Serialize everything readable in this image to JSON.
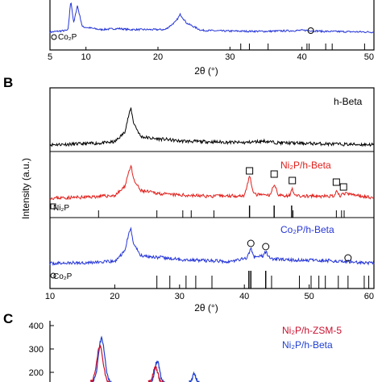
{
  "colors": {
    "black": "#000000",
    "red": "#e0201c",
    "blue": "#2535d6",
    "c_red": "#c8102e",
    "c_blue": "#1f3fcf"
  },
  "panel_a": {
    "ref_label": "Co₂P",
    "xlabel": "2θ (°)",
    "xticks": [
      "5",
      "10",
      "20",
      "30",
      "40",
      "50"
    ]
  },
  "panel_b": {
    "letter": "B",
    "ylabel": "Intensity (a.u.)",
    "xlabel": "2θ (°)",
    "xticks": [
      "10",
      "20",
      "30",
      "40",
      "50",
      "60"
    ],
    "series_labels": [
      "h-Beta",
      "Ni₂P/h-Beta",
      "Co₂P/h-Beta"
    ],
    "ref_labels": [
      "Ni₂P",
      "Co₂P"
    ]
  },
  "panel_c": {
    "letter": "C",
    "yticks": [
      "400",
      "300",
      "200"
    ],
    "legend": [
      "Ni₂P/h-ZSM-5",
      "Ni₂P/h-Beta"
    ]
  },
  "chart_data": [
    {
      "type": "line",
      "panel": "A (partial)",
      "xlabel": "2θ (°)",
      "xlim": [
        5,
        50
      ],
      "series": [
        {
          "x": [
            5,
            7.5,
            7.9,
            8.3,
            8.8,
            9.5,
            12,
            14.5,
            16,
            21,
            22.5,
            23.1,
            24,
            26,
            29,
            35,
            40.5,
            43,
            50
          ],
          "values": [
            0.05,
            0.1,
            0.95,
            0.3,
            0.8,
            0.2,
            0.12,
            0.15,
            0.12,
            0.12,
            0.35,
            0.55,
            0.3,
            0.1,
            0.08,
            0.07,
            0.1,
            0.07,
            0.05
          ]
        }
      ],
      "reference_ticks": {
        "name": "Co₂P",
        "x": [
          31.5,
          32.7,
          35.3,
          40.7,
          41.0,
          43.3,
          44.2,
          48.7
        ]
      },
      "markers": {
        "symbol": "circle",
        "x": [
          41.0
        ]
      }
    },
    {
      "type": "line",
      "panel": "B",
      "xlabel": "2θ (°)",
      "ylabel": "Intensity (a.u.)",
      "xlim": [
        10,
        60
      ],
      "series": [
        {
          "name": "h-Beta",
          "color": "#000000",
          "x": [
            10,
            15,
            18,
            20,
            21.5,
            22.2,
            22.5,
            22.9,
            24,
            26,
            28,
            30,
            35,
            40,
            43,
            45,
            50,
            55,
            60
          ],
          "values": [
            0.05,
            0.07,
            0.09,
            0.12,
            0.35,
            0.8,
            0.95,
            0.6,
            0.25,
            0.2,
            0.18,
            0.14,
            0.12,
            0.1,
            0.14,
            0.1,
            0.08,
            0.06,
            0.05
          ]
        },
        {
          "name": "Ni₂P/h-Beta",
          "color": "#e0201c",
          "x": [
            10,
            15,
            20,
            21.5,
            22.2,
            22.5,
            22.9,
            24,
            28,
            35,
            40,
            40.8,
            41.5,
            44,
            44.6,
            45.3,
            47,
            47.4,
            48,
            54,
            54.2,
            54.7,
            55.3,
            60
          ],
          "values": [
            0.05,
            0.07,
            0.12,
            0.35,
            0.8,
            0.95,
            0.55,
            0.25,
            0.15,
            0.1,
            0.12,
            0.65,
            0.15,
            0.12,
            0.45,
            0.12,
            0.12,
            0.3,
            0.1,
            0.1,
            0.25,
            0.1,
            0.18,
            0.06
          ]
        },
        {
          "name": "Co₂P/h-Beta",
          "color": "#2535d6",
          "x": [
            10,
            15,
            20,
            21.5,
            22.2,
            22.5,
            22.9,
            24,
            30,
            38,
            40.5,
            41.0,
            41.5,
            43,
            43.3,
            44,
            48,
            52,
            56,
            60
          ],
          "values": [
            0.1,
            0.12,
            0.15,
            0.4,
            0.85,
            0.95,
            0.6,
            0.3,
            0.2,
            0.15,
            0.25,
            0.5,
            0.25,
            0.3,
            0.4,
            0.22,
            0.18,
            0.18,
            0.15,
            0.1
          ]
        }
      ],
      "reference_ticks": [
        {
          "name": "Ni₂P",
          "x": [
            17.5,
            26.5,
            30.5,
            31.8,
            35.3,
            40.8,
            44.6,
            47.3,
            47.5,
            54.2,
            55.0,
            55.4
          ]
        },
        {
          "name": "Co₂P",
          "x": [
            26.5,
            28.5,
            31.0,
            32.5,
            35.0,
            40.7,
            41.0,
            43.3,
            44.2,
            48.5,
            50.3,
            51.5,
            52.5,
            54.5,
            56.0,
            58.5,
            59.2
          ]
        }
      ],
      "markers": [
        {
          "series": "Ni₂P/h-Beta",
          "symbol": "square",
          "x": [
            40.8,
            44.6,
            47.4,
            54.2,
            55.3
          ]
        },
        {
          "series": "Co₂P/h-Beta",
          "symbol": "circle",
          "x": [
            41.0,
            43.3,
            56.0
          ]
        }
      ]
    },
    {
      "type": "line",
      "panel": "C (partial)",
      "ylim_visible": [
        150,
        400
      ],
      "yticks": [
        400,
        300,
        200
      ],
      "series": [
        {
          "name": "Ni₂P/h-ZSM-5",
          "color": "#c8102e"
        },
        {
          "name": "Ni₂P/h-Beta",
          "color": "#1f3fcf"
        }
      ]
    }
  ]
}
